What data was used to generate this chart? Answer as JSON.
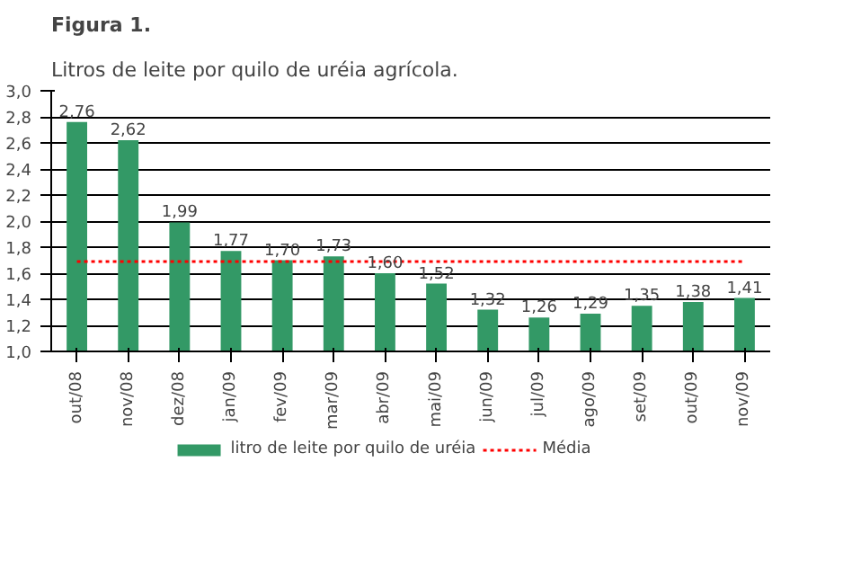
{
  "chart_data": {
    "type": "bar",
    "title": "Figura 1.",
    "subtitle": "Litros de leite por quilo de uréia agrícola.",
    "categories": [
      "out/08",
      "nov/08",
      "dez/08",
      "jan/09",
      "fev/09",
      "mar/09",
      "abr/09",
      "mai/09",
      "jun/09",
      "jul/09",
      "ago/09",
      "set/09",
      "out/09",
      "nov/09"
    ],
    "series": [
      {
        "name": "litro de leite por quilo de uréia",
        "color": "#339966",
        "values": [
          2.76,
          2.62,
          1.99,
          1.77,
          1.7,
          1.73,
          1.6,
          1.52,
          1.32,
          1.26,
          1.29,
          1.35,
          1.38,
          1.41
        ],
        "value_labels": [
          "2,76",
          "2,62",
          "1,99",
          "1,77",
          "1,70",
          "1,73",
          "1,60",
          "1,52",
          "1,32",
          "1,26",
          "1,29",
          "1,35",
          "1,38",
          "1,41"
        ]
      },
      {
        "name": "Média",
        "type": "line",
        "color": "#ff0000",
        "line_style": "dotted",
        "values": [
          1.69,
          1.69,
          1.69,
          1.69,
          1.69,
          1.69,
          1.69,
          1.69,
          1.69,
          1.69,
          1.69,
          1.69,
          1.69,
          1.69
        ]
      }
    ],
    "ylim": [
      1.0,
      3.0
    ],
    "yticks": [
      {
        "value": 1.0,
        "label": "1,0"
      },
      {
        "value": 1.2,
        "label": "1,2"
      },
      {
        "value": 1.4,
        "label": "1,4"
      },
      {
        "value": 1.6,
        "label": "1,6"
      },
      {
        "value": 1.8,
        "label": "1,8"
      },
      {
        "value": 2.0,
        "label": "2,0"
      },
      {
        "value": 2.2,
        "label": "2,2"
      },
      {
        "value": 2.4,
        "label": "2,4"
      },
      {
        "value": 2.6,
        "label": "2,6"
      },
      {
        "value": 2.8,
        "label": "2,8"
      },
      {
        "value": 3.0,
        "label": "3,0"
      }
    ],
    "grid": "y",
    "legend": "bottom"
  }
}
